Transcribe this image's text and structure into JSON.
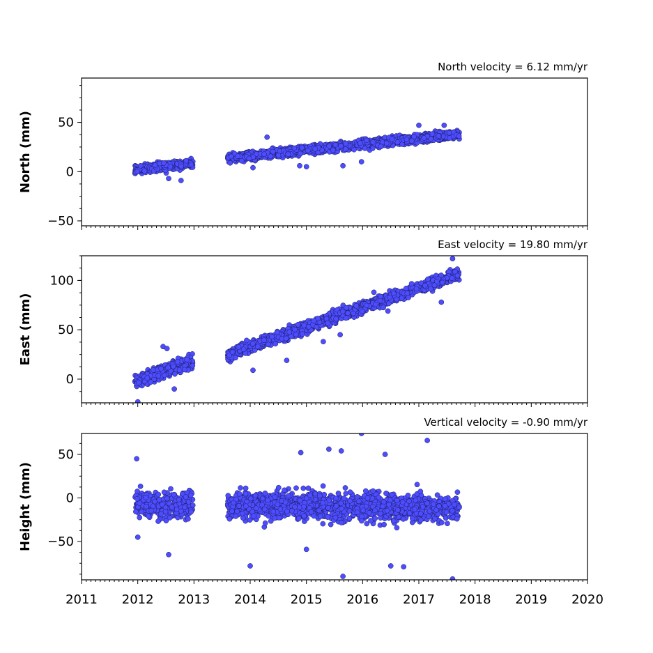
{
  "chart_data": {
    "type": "scatter",
    "x_ticks": [
      2011,
      2012,
      2013,
      2014,
      2015,
      2016,
      2017,
      2018,
      2019,
      2020
    ],
    "xlim": [
      2011,
      2020
    ],
    "marker_color": "#4d4dff",
    "marker_edge_color": "#1a1a5e",
    "panels": [
      {
        "id": "north",
        "title": "North velocity = 6.12 mm/yr",
        "ylabel": "North (mm)",
        "ylim": [
          -55,
          95
        ],
        "y_ticks": [
          -50,
          0,
          50
        ],
        "velocity_mm_per_yr": 6.12,
        "segments": [
          {
            "x_start": 2011.95,
            "x_end": 2012.98,
            "y_start": 2.0,
            "y_end": 8.5,
            "noise": 3.2
          },
          {
            "x_start": 2013.6,
            "x_end": 2017.72,
            "y_start": 14.0,
            "y_end": 38.0,
            "noise": 3.0
          }
        ],
        "outliers": [
          [
            2014.3,
            35
          ],
          [
            2014.05,
            4
          ],
          [
            2015.0,
            5
          ],
          [
            2015.65,
            6
          ],
          [
            2015.98,
            10
          ],
          [
            2017.0,
            47
          ],
          [
            2017.45,
            47
          ],
          [
            2012.55,
            -7
          ],
          [
            2012.77,
            -9
          ],
          [
            2014.88,
            6
          ]
        ]
      },
      {
        "id": "east",
        "title": "East velocity = 19.80 mm/yr",
        "ylabel": "East (mm)",
        "ylim": [
          -24,
          125
        ],
        "y_ticks": [
          0,
          50,
          100
        ],
        "velocity_mm_per_yr": 19.8,
        "segments": [
          {
            "x_start": 2011.95,
            "x_end": 2012.98,
            "y_start": -2.0,
            "y_end": 18.0,
            "noise": 4.5
          },
          {
            "x_start": 2013.6,
            "x_end": 2017.72,
            "y_start": 25.0,
            "y_end": 107.0,
            "noise": 4.0
          }
        ],
        "outliers": [
          [
            2012.0,
            -23
          ],
          [
            2012.45,
            33
          ],
          [
            2012.52,
            31
          ],
          [
            2014.05,
            9
          ],
          [
            2014.65,
            19
          ],
          [
            2015.3,
            38
          ],
          [
            2015.6,
            45
          ],
          [
            2016.2,
            88
          ],
          [
            2017.4,
            78
          ],
          [
            2017.6,
            122
          ],
          [
            2016.45,
            69
          ],
          [
            2012.65,
            -10
          ]
        ]
      },
      {
        "id": "height",
        "title": "Vertical velocity = -0.90 mm/yr",
        "ylabel": "Height (mm)",
        "ylim": [
          -94,
          74
        ],
        "y_ticks": [
          -50,
          0,
          50
        ],
        "velocity_mm_per_yr": -0.9,
        "segments": [
          {
            "x_start": 2011.95,
            "x_end": 2012.98,
            "y_start": -7.0,
            "y_end": -8.0,
            "noise": 10.0
          },
          {
            "x_start": 2013.6,
            "x_end": 2017.72,
            "y_start": -8.0,
            "y_end": -12.0,
            "noise": 11.0
          }
        ],
        "outliers": [
          [
            2011.98,
            45
          ],
          [
            2012.55,
            -65
          ],
          [
            2012.0,
            -45
          ],
          [
            2014.0,
            -78
          ],
          [
            2015.0,
            -59
          ],
          [
            2015.4,
            56
          ],
          [
            2015.62,
            54
          ],
          [
            2015.98,
            74
          ],
          [
            2017.15,
            66
          ],
          [
            2015.65,
            -90
          ],
          [
            2016.5,
            -78
          ],
          [
            2016.73,
            -79
          ],
          [
            2017.6,
            -93
          ],
          [
            2016.4,
            50
          ],
          [
            2014.9,
            52
          ]
        ]
      }
    ]
  }
}
